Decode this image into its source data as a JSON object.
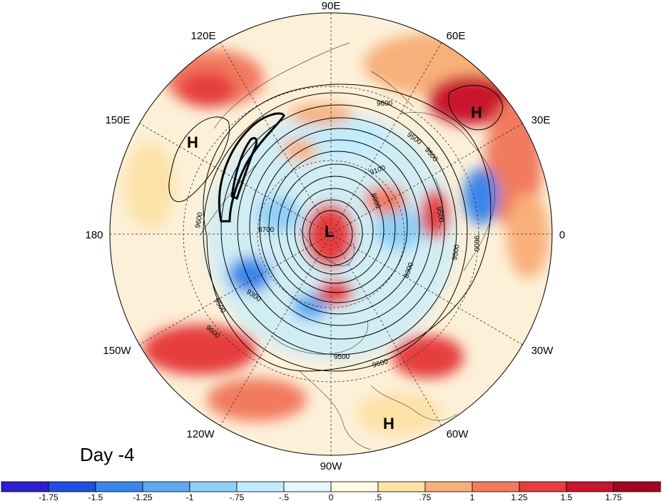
{
  "figure": {
    "panel_label": "Day -4"
  },
  "longitude_labels": [
    {
      "key": "lon-90e",
      "text": "90E"
    },
    {
      "key": "lon-60e",
      "text": "60E"
    },
    {
      "key": "lon-30e",
      "text": "30E"
    },
    {
      "key": "lon-0",
      "text": "0"
    },
    {
      "key": "lon-30w",
      "text": "30W"
    },
    {
      "key": "lon-60w",
      "text": "60W"
    },
    {
      "key": "lon-90w",
      "text": "90W"
    },
    {
      "key": "lon-120w",
      "text": "120W"
    },
    {
      "key": "lon-150w",
      "text": "150W"
    },
    {
      "key": "lon-180",
      "text": "180"
    },
    {
      "key": "lon-150e",
      "text": "150E"
    },
    {
      "key": "lon-120e",
      "text": "120E"
    }
  ],
  "pressure_centers": [
    {
      "key": "high-asia-west",
      "text": "H"
    },
    {
      "key": "high-pacific-west",
      "text": "H"
    },
    {
      "key": "low-pole",
      "text": "L"
    },
    {
      "key": "high-atlantic-south",
      "text": "H"
    }
  ],
  "contour_labels": [
    {
      "key": "c1",
      "text": "9600"
    },
    {
      "key": "c2",
      "text": "9500"
    },
    {
      "key": "c3",
      "text": "9100"
    },
    {
      "key": "c4",
      "text": "8900"
    },
    {
      "key": "c5",
      "text": "9500"
    },
    {
      "key": "c6",
      "text": "9600"
    },
    {
      "key": "c7",
      "text": "9500"
    },
    {
      "key": "c8",
      "text": "9300"
    },
    {
      "key": "c9",
      "text": "9600"
    },
    {
      "key": "c10",
      "text": "9500"
    },
    {
      "key": "c11",
      "text": "9600"
    },
    {
      "key": "c12",
      "text": "9300"
    },
    {
      "key": "c13",
      "text": "8700"
    },
    {
      "key": "c14",
      "text": "9500"
    },
    {
      "key": "c15",
      "text": "9600"
    },
    {
      "key": "c16",
      "text": "9500"
    }
  ],
  "colorbar": {
    "colors": [
      "#2b1fd1",
      "#1f4fe0",
      "#3b86ea",
      "#5ea9f2",
      "#8fd0f8",
      "#c2ecfd",
      "#e6f8ff",
      "#fffbe2",
      "#fde2a8",
      "#f8b07a",
      "#f27a5e",
      "#e63d3d",
      "#c9142d",
      "#a10820"
    ],
    "tick_labels": [
      "-1.75",
      "-1.5",
      "-1.25",
      "-1",
      "-.75",
      "-.5",
      "0",
      ".5",
      ".75",
      "1",
      "1.25",
      "1.5",
      "1.75"
    ]
  }
}
